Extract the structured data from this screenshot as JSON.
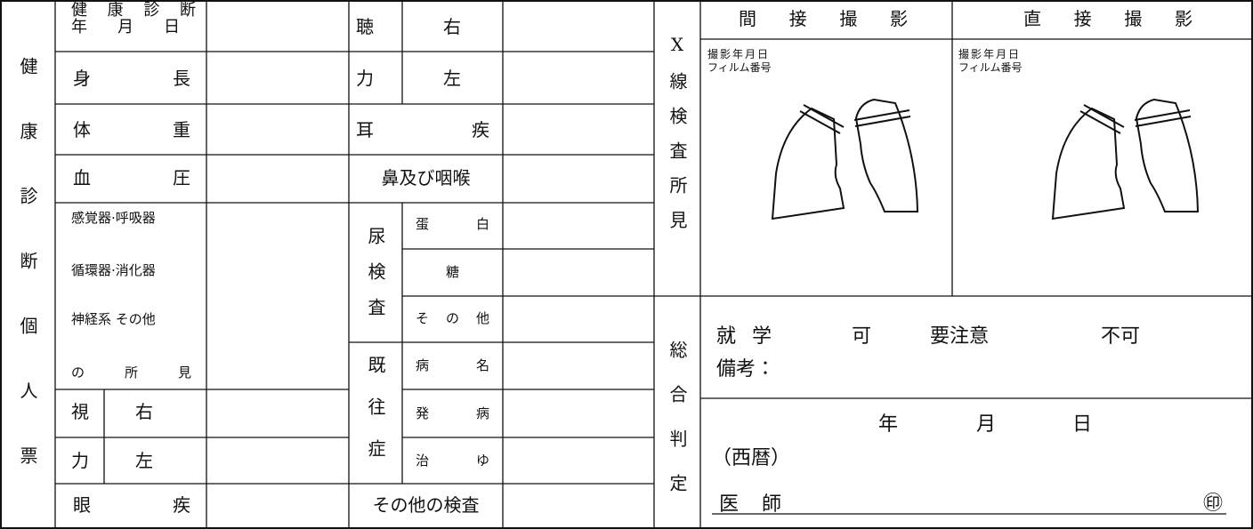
{
  "title": "健康診断個人票",
  "left": {
    "exam_date": [
      "健康診断",
      "年月日"
    ],
    "height": "身長",
    "weight": "体重",
    "blood_pressure": "血圧",
    "findings": [
      "感覚器·呼吸器",
      "循環器·消化器",
      "神経系 その他",
      "の所見"
    ],
    "vision": {
      "label": [
        "視",
        "力"
      ],
      "right": "右",
      "left": "左"
    },
    "eye_disease": "眼疾"
  },
  "middle": {
    "hearing": {
      "label": [
        "聴",
        "力"
      ],
      "right": "右",
      "left": "左"
    },
    "ear_disease": "耳疾",
    "nose_throat": "鼻及び咽喉",
    "urine": {
      "label": "尿検査",
      "items": [
        "蛋白",
        "糖",
        "その他"
      ]
    },
    "history": {
      "label": "既往症",
      "items": [
        "病名",
        "発病",
        "治ゆ"
      ]
    },
    "other_tests": "その他の検査"
  },
  "xray": {
    "label": "X線検査所見",
    "indirect": {
      "title": "間接撮影",
      "date": "撮影年月日",
      "film": "フィルム番号"
    },
    "direct": {
      "title": "直接撮影",
      "date": "撮影年月日",
      "film": "フィルム番号"
    }
  },
  "summary": {
    "label": "総合判定",
    "school": "就学",
    "options": [
      "可",
      "要注意",
      "不可"
    ],
    "remarks": "備考：",
    "date": [
      "年",
      "月",
      "日"
    ],
    "era": "（西暦）",
    "doctor": "医師",
    "seal": "㊞"
  }
}
